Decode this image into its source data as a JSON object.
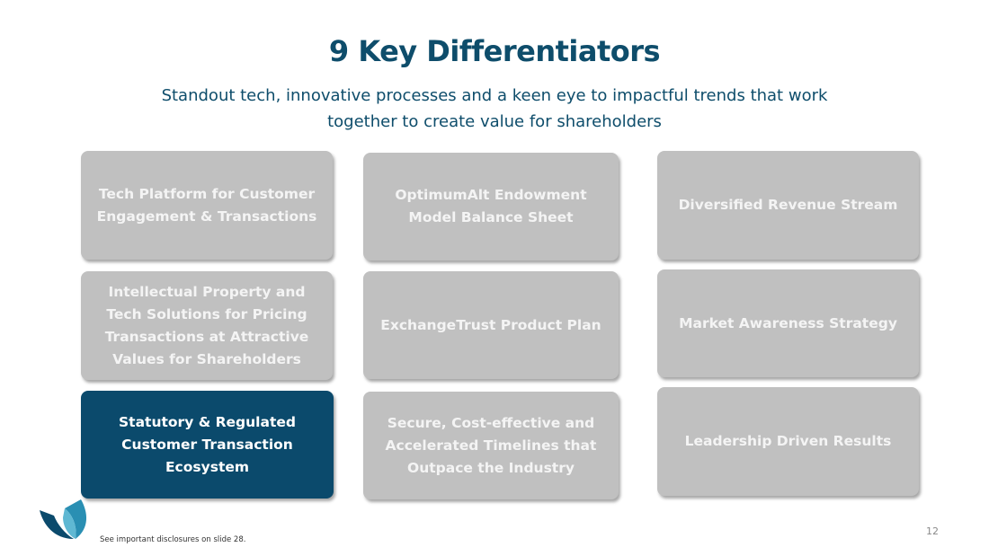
{
  "slide": {
    "title": "9 Key Differentiators",
    "subtitle": "Standout tech, innovative processes and a keen eye to impactful trends that work together to create value for shareholders",
    "page_number": "12",
    "disclosure": "See important disclosures on slide 28."
  },
  "colors": {
    "title": "#0e4d6b",
    "card_inactive": "#c0c0c0",
    "card_active": "#0b4a6c"
  },
  "differentiators": [
    {
      "label": "Tech Platform for Customer Engagement & Transactions"
    },
    {
      "label": "OptimumAlt Endowment Model Balance Sheet"
    },
    {
      "label": "Diversified Revenue Stream"
    },
    {
      "label": "Intellectual Property and Tech Solutions for Pricing Transactions at Attractive Values for Shareholders"
    },
    {
      "label": "ExchangeTrust Product Plan"
    },
    {
      "label": "Market Awareness Strategy"
    },
    {
      "label": "Statutory & Regulated Customer Transaction Ecosystem"
    },
    {
      "label": "Secure, Cost-effective and Accelerated Timelines that Outpace the Industry"
    },
    {
      "label": "Leadership Driven Results"
    }
  ],
  "active_index": 6,
  "logo": {
    "icon": "company-logo-icon"
  }
}
